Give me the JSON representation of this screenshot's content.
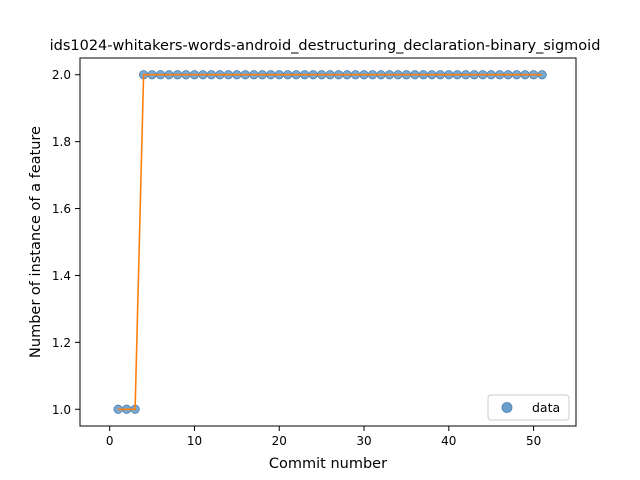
{
  "chart_data": {
    "type": "scatter",
    "title": "ids1024-whitakers-words-android_destructuring_declaration-binary_sigmoid",
    "xlabel": "Commit number",
    "ylabel": "Number of instance of a feature",
    "xlim": [
      -3.5,
      55.0
    ],
    "ylim": [
      0.95,
      2.05
    ],
    "xticks": [
      0,
      10,
      20,
      30,
      40,
      50
    ],
    "yticks": [
      1.0,
      1.2,
      1.4,
      1.6,
      1.8,
      2.0
    ],
    "xtick_labels": [
      "0",
      "10",
      "20",
      "30",
      "40",
      "50"
    ],
    "ytick_labels": [
      "1.0",
      "1.2",
      "1.4",
      "1.6",
      "1.8",
      "2.0"
    ],
    "grid": false,
    "legend_position": "bottom-right",
    "series": [
      {
        "name": "data",
        "kind": "points",
        "color": "#6a9fcc",
        "edge_color": "#4a7fb0",
        "x": [
          1,
          2,
          3,
          4,
          5,
          6,
          7,
          8,
          9,
          10,
          11,
          12,
          13,
          14,
          15,
          16,
          17,
          18,
          19,
          20,
          21,
          22,
          23,
          24,
          25,
          26,
          27,
          28,
          29,
          30,
          31,
          32,
          33,
          34,
          35,
          36,
          37,
          38,
          39,
          40,
          41,
          42,
          43,
          44,
          45,
          46,
          47,
          48,
          49,
          50,
          51
        ],
        "y": [
          1,
          1,
          1,
          2,
          2,
          2,
          2,
          2,
          2,
          2,
          2,
          2,
          2,
          2,
          2,
          2,
          2,
          2,
          2,
          2,
          2,
          2,
          2,
          2,
          2,
          2,
          2,
          2,
          2,
          2,
          2,
          2,
          2,
          2,
          2,
          2,
          2,
          2,
          2,
          2,
          2,
          2,
          2,
          2,
          2,
          2,
          2,
          2,
          2,
          2,
          2
        ]
      },
      {
        "kind": "line",
        "color": "#ff7f0e",
        "x": [
          1,
          2,
          3,
          4,
          5,
          6,
          7,
          8,
          9,
          10,
          11,
          12,
          13,
          14,
          15,
          16,
          17,
          18,
          19,
          20,
          21,
          22,
          23,
          24,
          25,
          26,
          27,
          28,
          29,
          30,
          31,
          32,
          33,
          34,
          35,
          36,
          37,
          38,
          39,
          40,
          41,
          42,
          43,
          44,
          45,
          46,
          47,
          48,
          49,
          50,
          51
        ],
        "y": [
          1,
          1,
          1,
          2,
          2,
          2,
          2,
          2,
          2,
          2,
          2,
          2,
          2,
          2,
          2,
          2,
          2,
          2,
          2,
          2,
          2,
          2,
          2,
          2,
          2,
          2,
          2,
          2,
          2,
          2,
          2,
          2,
          2,
          2,
          2,
          2,
          2,
          2,
          2,
          2,
          2,
          2,
          2,
          2,
          2,
          2,
          2,
          2,
          2,
          2,
          2
        ]
      }
    ]
  }
}
